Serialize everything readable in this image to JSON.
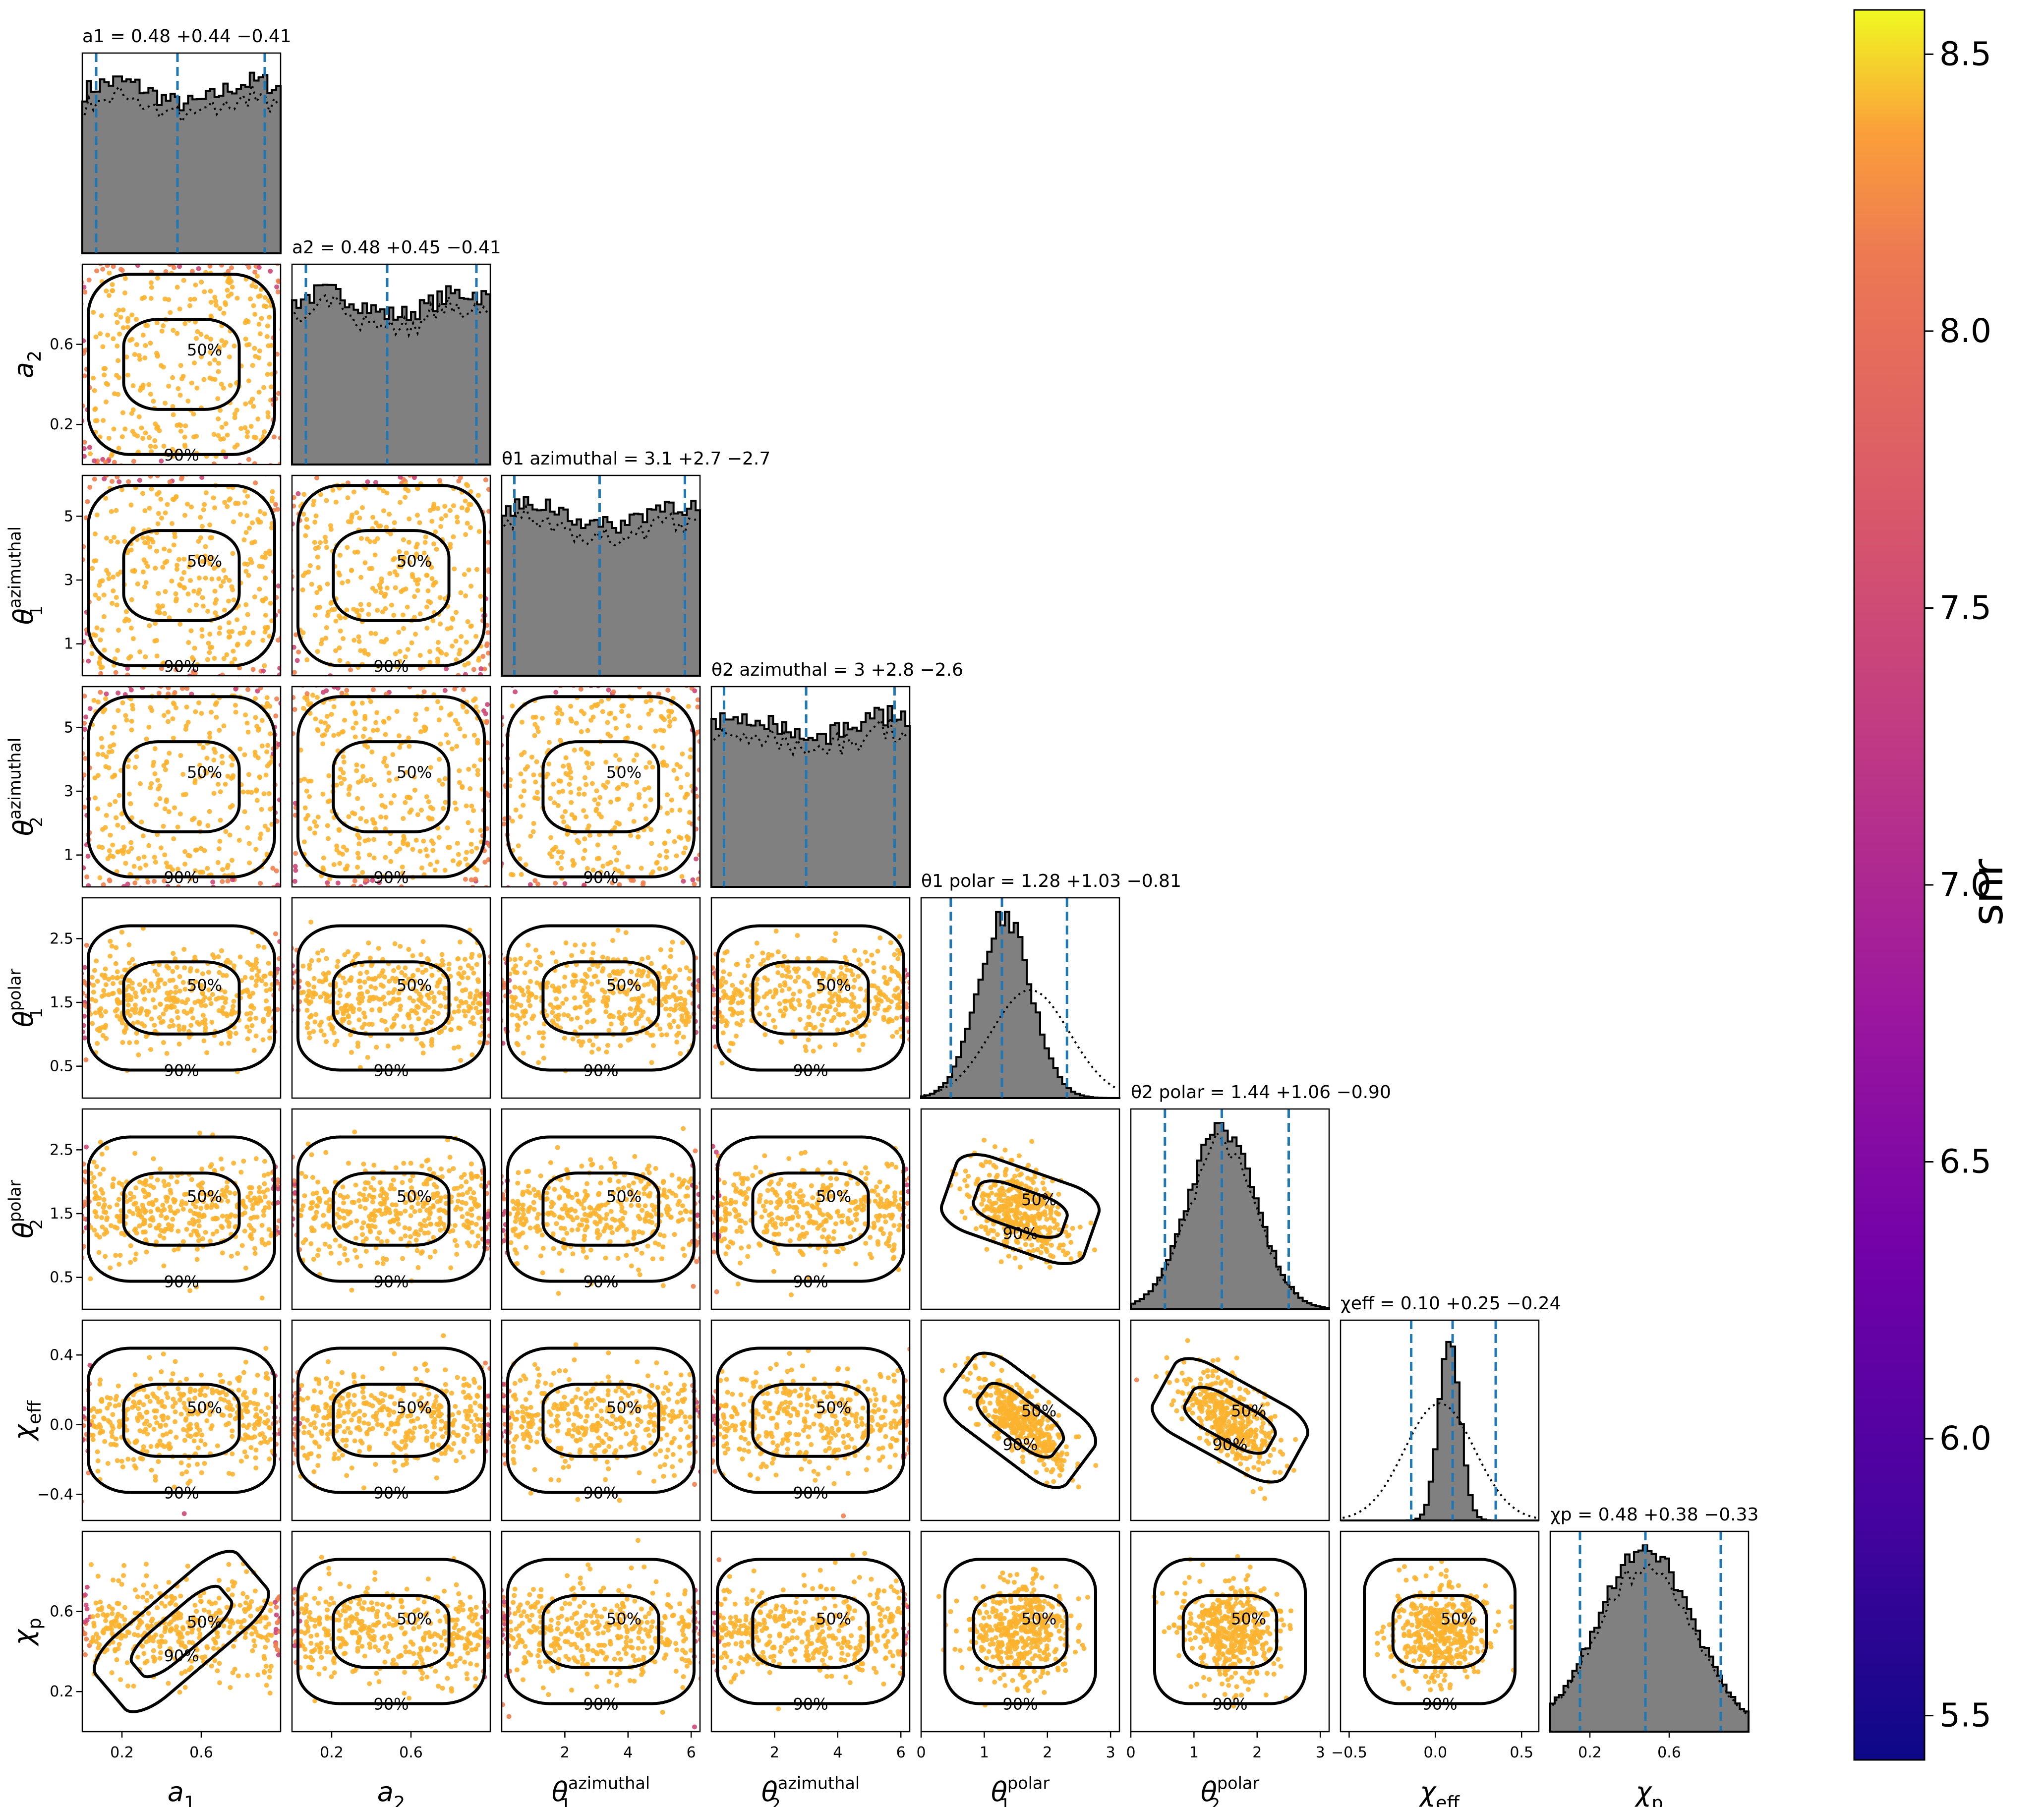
{
  "colors": {
    "axes": "#000000",
    "hist_fill": "#808080",
    "quantile_line": "#1f77b4",
    "contour": "#000000",
    "scatter_core": "#fbb32f",
    "scatter_edge": "#ef7f4f",
    "scatter_outlier": "#cc4778"
  },
  "colorbar": {
    "label": "snr",
    "colormap": "plasma",
    "range": [
      5.42,
      8.58
    ],
    "ticks": [
      "5.5",
      "6.0",
      "6.5",
      "7.0",
      "7.5",
      "8.0",
      "8.5"
    ]
  },
  "chart_data": {
    "type": "corner",
    "parameters": [
      {
        "key": "a1",
        "axis_label": "a1",
        "title": "a1 = 0.48 +0.44 −0.41",
        "range": [
          0,
          1
        ],
        "ticks": [
          "0.2",
          "0.6"
        ],
        "median": 0.48,
        "upper": 0.44,
        "lower": 0.41
      },
      {
        "key": "a2",
        "axis_label": "a2",
        "title": "a2 = 0.48 +0.45 −0.41",
        "range": [
          0,
          1
        ],
        "ticks": [
          "0.2",
          "0.6"
        ],
        "median": 0.48,
        "upper": 0.45,
        "lower": 0.41
      },
      {
        "key": "theta1_azimuthal",
        "axis_label": "θ1 azimuthal",
        "title": "θ1 azimuthal = 3.1 +2.7 −2.7",
        "range": [
          0,
          6.28
        ],
        "ticks": [
          "2",
          "4",
          "6"
        ],
        "ylabel_ticks": [
          "1",
          "3",
          "5"
        ],
        "median": 3.1,
        "upper": 2.7,
        "lower": 2.7
      },
      {
        "key": "theta2_azimuthal",
        "axis_label": "θ2 azimuthal",
        "title": "θ2 azimuthal = 3 +2.8 −2.6",
        "range": [
          0,
          6.28
        ],
        "ticks": [
          "2",
          "4",
          "6"
        ],
        "ylabel_ticks": [
          "1",
          "3",
          "5"
        ],
        "median": 3.0,
        "upper": 2.8,
        "lower": 2.6
      },
      {
        "key": "theta1_polar",
        "axis_label": "θ1 polar",
        "title": "θ1 polar = 1.28 +1.03 −0.81",
        "range": [
          0,
          3.14
        ],
        "ticks": [
          "0",
          "1",
          "2",
          "3"
        ],
        "ylabel_ticks": [
          "0.5",
          "1.5",
          "2.5"
        ],
        "median": 1.28,
        "upper": 1.03,
        "lower": 0.81
      },
      {
        "key": "theta2_polar",
        "axis_label": "θ2 polar",
        "title": "θ2 polar = 1.44 +1.06 −0.90",
        "range": [
          0,
          3.14
        ],
        "ticks": [
          "0",
          "1",
          "2",
          "3"
        ],
        "ylabel_ticks": [
          "0.5",
          "1.5",
          "2.5"
        ],
        "median": 1.44,
        "upper": 1.06,
        "lower": 0.9
      },
      {
        "key": "chi_eff",
        "axis_label": "χeff",
        "title": "χeff = 0.10 +0.25 −0.24",
        "range": [
          -0.55,
          0.6
        ],
        "ticks": [
          "−0.5",
          "0.0",
          "0.5"
        ],
        "ylabel_ticks": [
          "−0.4",
          "0.0",
          "0.4"
        ],
        "median": 0.1,
        "upper": 0.25,
        "lower": 0.24
      },
      {
        "key": "chi_p",
        "axis_label": "χp",
        "title": "χp = 0.48 +0.38 −0.33",
        "range": [
          0,
          1
        ],
        "ticks": [
          "0.2",
          "0.6"
        ],
        "ylabel_ticks": [
          "0.2",
          "0.6"
        ],
        "median": 0.48,
        "upper": 0.38,
        "lower": 0.33
      }
    ],
    "contour_levels": [
      "50%",
      "90%"
    ],
    "histogram_shapes": {
      "a1": "flat",
      "a2": "flat",
      "theta1_azimuthal": "flat",
      "theta2_azimuthal": "flat",
      "theta1_polar": "peaked",
      "theta2_polar": "peaked",
      "chi_eff": "peaked",
      "chi_p": "broad"
    }
  }
}
